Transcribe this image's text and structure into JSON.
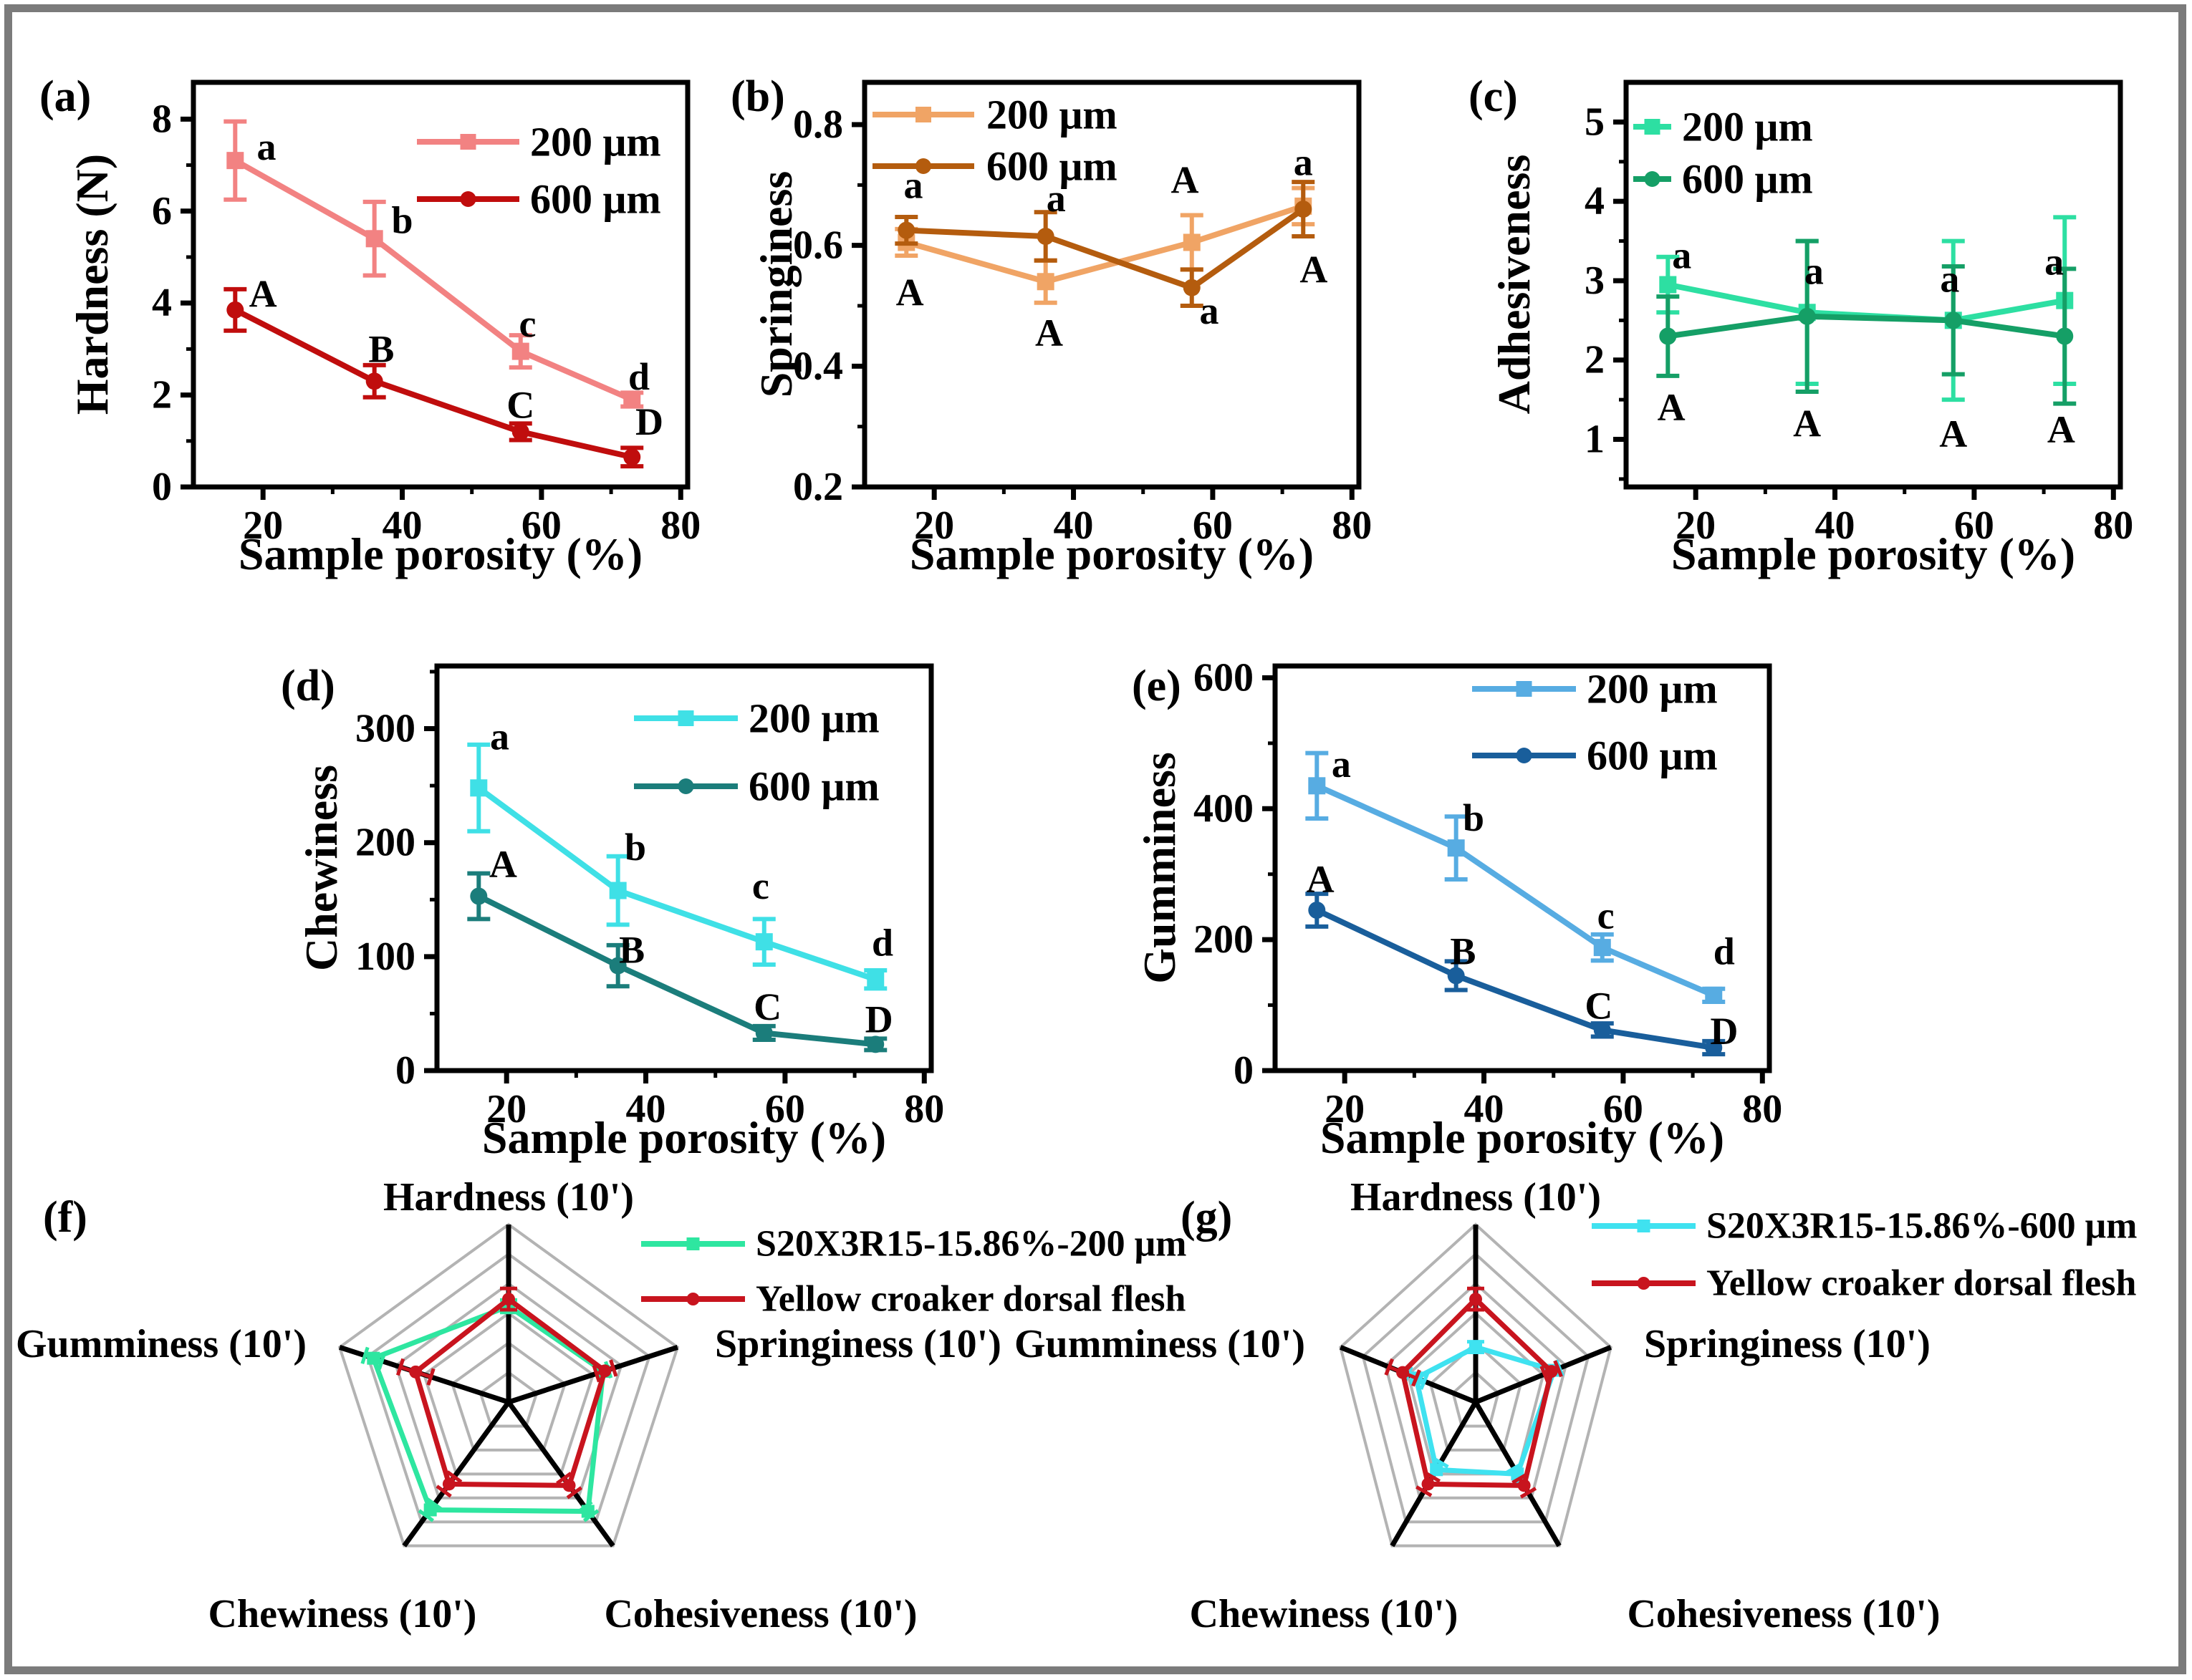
{
  "figure": {
    "background": "#ffffff",
    "frame_color": "#7b7b7b",
    "grid_color": "#b3b3b3",
    "axis_color": "#000000"
  },
  "chart_data": [
    {
      "id": "a",
      "type": "line",
      "panel_label": "(a)",
      "xlabel": "Sample porosity (%)",
      "ylabel": "Hardness (N)",
      "xlim": [
        10,
        81
      ],
      "ylim": [
        0,
        8.8
      ],
      "xticks": [
        "20",
        "40",
        "60",
        "80"
      ],
      "yticks": [
        "0",
        "2",
        "4",
        "6",
        "8"
      ],
      "xminor": [
        30,
        50,
        70
      ],
      "yminor": [
        1,
        3,
        5,
        7
      ],
      "x": [
        16,
        36,
        57,
        73
      ],
      "legend_pos": "top-right",
      "series": [
        {
          "name": "200 μm",
          "color": "#f28282",
          "marker": "square",
          "values": [
            7.1,
            5.4,
            2.95,
            1.9
          ],
          "errors": [
            0.85,
            0.8,
            0.35,
            0.15
          ]
        },
        {
          "name": "600 μm",
          "color": "#c00d0d",
          "marker": "circle",
          "values": [
            3.85,
            2.3,
            1.2,
            0.65
          ],
          "errors": [
            0.45,
            0.35,
            0.18,
            0.2
          ]
        }
      ],
      "annotations": [
        {
          "text": "a",
          "x": 20.5,
          "y": 7.4
        },
        {
          "text": "b",
          "x": 40,
          "y": 5.8
        },
        {
          "text": "c",
          "x": 58,
          "y": 3.55
        },
        {
          "text": "d",
          "x": 74,
          "y": 2.4
        },
        {
          "text": "A",
          "x": 20,
          "y": 4.2
        },
        {
          "text": "B",
          "x": 37,
          "y": 3.0
        },
        {
          "text": "C",
          "x": 57,
          "y": 1.78
        },
        {
          "text": "D",
          "x": 75.5,
          "y": 1.42
        }
      ]
    },
    {
      "id": "b",
      "type": "line",
      "panel_label": "(b)",
      "xlabel": "Sample porosity (%)",
      "ylabel": "Springiness",
      "xlim": [
        10,
        81
      ],
      "ylim": [
        0.2,
        0.87
      ],
      "xticks": [
        "20",
        "40",
        "60",
        "80"
      ],
      "yticks": [
        "0.2",
        "0.4",
        "0.6",
        "0.8"
      ],
      "xminor": [
        30,
        50,
        70
      ],
      "yminor": [
        0.3,
        0.5,
        0.7
      ],
      "x": [
        16,
        36,
        57,
        73
      ],
      "legend_pos": "top-left",
      "series": [
        {
          "name": "200 μm",
          "color": "#f0a465",
          "marker": "square",
          "values": [
            0.605,
            0.54,
            0.605,
            0.665
          ],
          "errors": [
            0.022,
            0.035,
            0.045,
            0.03
          ]
        },
        {
          "name": "600 μm",
          "color": "#b45c0e",
          "marker": "circle",
          "values": [
            0.625,
            0.615,
            0.53,
            0.66
          ],
          "errors": [
            0.022,
            0.04,
            0.03,
            0.045
          ]
        }
      ],
      "annotations": [
        {
          "text": "a",
          "x": 17,
          "y": 0.7
        },
        {
          "text": "A",
          "x": 16.5,
          "y": 0.522
        },
        {
          "text": "a",
          "x": 37.5,
          "y": 0.678
        },
        {
          "text": "A",
          "x": 36.5,
          "y": 0.455
        },
        {
          "text": "A",
          "x": 56,
          "y": 0.708
        },
        {
          "text": "a",
          "x": 59.5,
          "y": 0.492
        },
        {
          "text": "a",
          "x": 73,
          "y": 0.738
        },
        {
          "text": "A",
          "x": 74.5,
          "y": 0.56
        }
      ]
    },
    {
      "id": "c",
      "type": "line",
      "panel_label": "(c)",
      "xlabel": "Sample porosity (%)",
      "ylabel": "Adhesiveness",
      "xlim": [
        10,
        81
      ],
      "ylim": [
        0.4,
        5.5
      ],
      "xticks": [
        "20",
        "40",
        "60",
        "80"
      ],
      "yticks": [
        "1",
        "2",
        "3",
        "4",
        "5"
      ],
      "xminor": [
        30,
        50,
        70
      ],
      "yminor": [
        0.5,
        1.5,
        2.5,
        3.5,
        4.5
      ],
      "x": [
        16,
        36,
        57,
        73
      ],
      "legend_pos": "top-left",
      "series": [
        {
          "name": "200 μm",
          "color": "#2ddfa2",
          "marker": "square",
          "values": [
            2.95,
            2.6,
            2.5,
            2.75
          ],
          "errors": [
            0.35,
            0.9,
            1.0,
            1.05
          ]
        },
        {
          "name": "600 μm",
          "color": "#159f66",
          "marker": "circle",
          "values": [
            2.3,
            2.55,
            2.5,
            2.3
          ],
          "errors": [
            0.5,
            0.95,
            0.68,
            0.85
          ]
        }
      ],
      "annotations": [
        {
          "text": "a",
          "x": 18,
          "y": 3.32
        },
        {
          "text": "a",
          "x": 37,
          "y": 3.12
        },
        {
          "text": "a",
          "x": 56.5,
          "y": 3.02
        },
        {
          "text": "a",
          "x": 71.5,
          "y": 3.24
        },
        {
          "text": "A",
          "x": 16.5,
          "y": 1.4
        },
        {
          "text": "A",
          "x": 36,
          "y": 1.2
        },
        {
          "text": "A",
          "x": 57,
          "y": 1.07
        },
        {
          "text": "A",
          "x": 72.5,
          "y": 1.12
        }
      ]
    },
    {
      "id": "d",
      "type": "line",
      "panel_label": "(d)",
      "xlabel": "Sample porosity (%)",
      "ylabel": "Chewiness",
      "xlim": [
        10,
        81
      ],
      "ylim": [
        0,
        355
      ],
      "xticks": [
        "20",
        "40",
        "60",
        "80"
      ],
      "yticks": [
        "0",
        "100",
        "200",
        "300"
      ],
      "xminor": [
        30,
        50,
        70
      ],
      "yminor": [
        50,
        150,
        250,
        350
      ],
      "x": [
        16,
        36,
        57,
        73
      ],
      "legend_pos": "top-right",
      "series": [
        {
          "name": "200 μm",
          "color": "#3fe0e6",
          "marker": "square",
          "values": [
            248,
            158,
            113,
            80
          ],
          "errors": [
            38,
            30,
            20,
            8
          ]
        },
        {
          "name": "600 μm",
          "color": "#1b7d7b",
          "marker": "circle",
          "values": [
            153,
            92,
            33,
            23
          ],
          "errors": [
            20,
            18,
            6,
            5
          ]
        }
      ],
      "annotations": [
        {
          "text": "a",
          "x": 19,
          "y": 293
        },
        {
          "text": "b",
          "x": 38.5,
          "y": 196
        },
        {
          "text": "c",
          "x": 56.5,
          "y": 162
        },
        {
          "text": "d",
          "x": 74,
          "y": 112
        },
        {
          "text": "A",
          "x": 19.5,
          "y": 181
        },
        {
          "text": "B",
          "x": 38,
          "y": 106
        },
        {
          "text": "C",
          "x": 57.5,
          "y": 56
        },
        {
          "text": "D",
          "x": 73.5,
          "y": 45
        }
      ]
    },
    {
      "id": "e",
      "type": "line",
      "panel_label": "(e)",
      "xlabel": "Sample porosity (%)",
      "ylabel": "Gumminess",
      "xlim": [
        10,
        81
      ],
      "ylim": [
        0,
        618
      ],
      "xticks": [
        "20",
        "40",
        "60",
        "80"
      ],
      "yticks": [
        "0",
        "200",
        "400",
        "600"
      ],
      "xminor": [
        30,
        50,
        70
      ],
      "yminor": [
        100,
        300,
        500
      ],
      "x": [
        16,
        36,
        57,
        73
      ],
      "legend_pos": "top-right",
      "series": [
        {
          "name": "200 μm",
          "color": "#57ace2",
          "marker": "square",
          "values": [
            435,
            340,
            188,
            115
          ],
          "errors": [
            50,
            48,
            20,
            10
          ]
        },
        {
          "name": "600 μm",
          "color": "#195e9b",
          "marker": "circle",
          "values": [
            245,
            145,
            62,
            35
          ],
          "errors": [
            25,
            22,
            10,
            10
          ]
        }
      ],
      "annotations": [
        {
          "text": "a",
          "x": 19.5,
          "y": 468
        },
        {
          "text": "b",
          "x": 38.5,
          "y": 386
        },
        {
          "text": "c",
          "x": 57.5,
          "y": 237
        },
        {
          "text": "d",
          "x": 74.5,
          "y": 182
        },
        {
          "text": "A",
          "x": 16.5,
          "y": 292
        },
        {
          "text": "B",
          "x": 37,
          "y": 182
        },
        {
          "text": "C",
          "x": 56.5,
          "y": 99
        },
        {
          "text": "D",
          "x": 74.5,
          "y": 60
        }
      ]
    },
    {
      "id": "f",
      "type": "radar",
      "panel_label": "(f)",
      "axes": [
        "Hardness (10')",
        "Springiness (10')",
        "Cohesiveness (10')",
        "Chewiness (10')",
        "Gumminess (10')"
      ],
      "max": 10,
      "rings": 6,
      "series": [
        {
          "name": "S20X3R15-15.86%-200 μm",
          "color": "#2ee6a0",
          "marker": "square",
          "values": [
            5.4,
            5.6,
            7.6,
            7.5,
            8.0
          ],
          "errors": [
            0.35,
            0.3,
            0.3,
            0.4,
            0.5
          ]
        },
        {
          "name": "Yellow croaker dorsal flesh",
          "color": "#c8141e",
          "marker": "circle",
          "values": [
            5.8,
            5.7,
            5.8,
            5.7,
            5.5
          ],
          "errors": [
            0.6,
            0.5,
            0.5,
            0.5,
            0.9
          ]
        }
      ]
    },
    {
      "id": "g",
      "type": "radar",
      "panel_label": "(g)",
      "axes": [
        "Hardness (10')",
        "Springiness (10')",
        "Cohesiveness (10')",
        "Chewiness (10')",
        "Gumminess (10')"
      ],
      "max": 10,
      "rings": 6,
      "series": [
        {
          "name": "S20X3R15-15.86%-600 μm",
          "color": "#3fe2f0",
          "marker": "square",
          "values": [
            3.1,
            5.8,
            5.0,
            4.7,
            4.4
          ],
          "errors": [
            0.3,
            0.4,
            0.4,
            0.5,
            0.6
          ]
        },
        {
          "name": "Yellow croaker dorsal flesh",
          "color": "#c8141e",
          "marker": "circle",
          "values": [
            5.8,
            5.6,
            5.8,
            5.7,
            5.4
          ],
          "errors": [
            0.6,
            0.5,
            0.5,
            0.5,
            1.0
          ]
        }
      ]
    }
  ]
}
